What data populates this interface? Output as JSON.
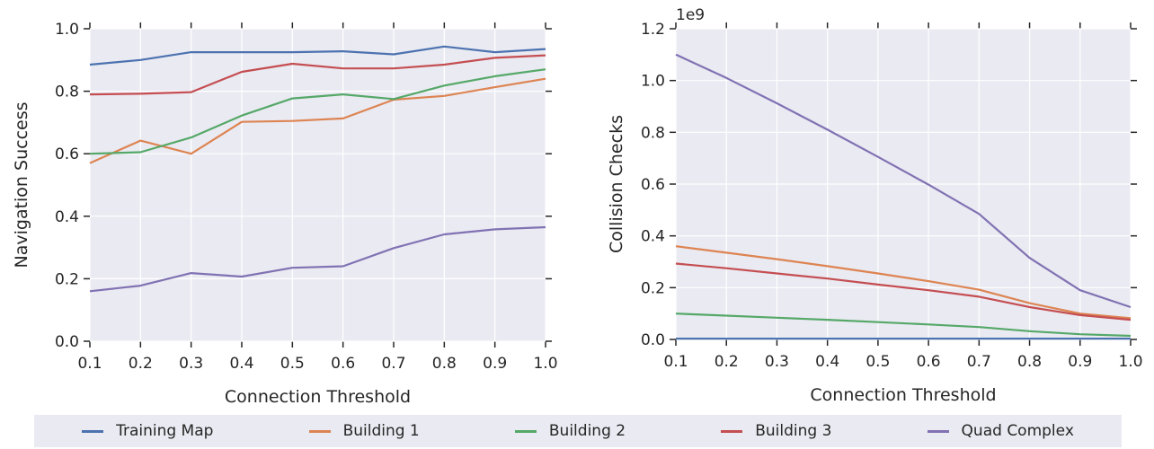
{
  "chart_data": [
    {
      "type": "line",
      "xlabel": "Connection Threshold",
      "ylabel": "Navigation Success",
      "x": [
        0.1,
        0.2,
        0.3,
        0.4,
        0.5,
        0.6,
        0.7,
        0.8,
        0.9,
        1.0
      ],
      "xlim": [
        0.1,
        1.0
      ],
      "ylim": [
        0.0,
        1.0
      ],
      "xticks": [
        "0.1",
        "0.2",
        "0.3",
        "0.4",
        "0.5",
        "0.6",
        "0.7",
        "0.8",
        "0.9",
        "1.0"
      ],
      "yticks": [
        "0.0",
        "0.2",
        "0.4",
        "0.6",
        "0.8",
        "1.0"
      ],
      "grid": true,
      "series": [
        {
          "name": "Training Map",
          "color": "#4c72b0",
          "values": [
            0.885,
            0.9,
            0.925,
            0.925,
            0.925,
            0.928,
            0.918,
            0.943,
            0.925,
            0.935
          ]
        },
        {
          "name": "Building 1",
          "color": "#dd8452",
          "values": [
            0.57,
            0.642,
            0.6,
            0.702,
            0.705,
            0.713,
            0.773,
            0.785,
            0.813,
            0.84
          ]
        },
        {
          "name": "Building 2",
          "color": "#55a868",
          "values": [
            0.6,
            0.605,
            0.652,
            0.722,
            0.777,
            0.79,
            0.775,
            0.818,
            0.848,
            0.87
          ]
        },
        {
          "name": "Building 3",
          "color": "#c44e52",
          "values": [
            0.79,
            0.792,
            0.797,
            0.862,
            0.888,
            0.873,
            0.873,
            0.885,
            0.907,
            0.915
          ]
        },
        {
          "name": "Quad Complex",
          "color": "#8172b3",
          "values": [
            0.16,
            0.178,
            0.218,
            0.207,
            0.235,
            0.24,
            0.298,
            0.342,
            0.358,
            0.365
          ]
        }
      ]
    },
    {
      "type": "line",
      "xlabel": "Connection Threshold",
      "ylabel": "Collision Checks",
      "y_offset_label": "1e9",
      "x": [
        0.1,
        0.2,
        0.3,
        0.4,
        0.5,
        0.6,
        0.7,
        0.8,
        0.9,
        1.0
      ],
      "xlim": [
        0.1,
        1.0
      ],
      "ylim": [
        0.0,
        1.2
      ],
      "xticks": [
        "0.1",
        "0.2",
        "0.3",
        "0.4",
        "0.5",
        "0.6",
        "0.7",
        "0.8",
        "0.9",
        "1.0"
      ],
      "yticks": [
        "0.0",
        "0.2",
        "0.4",
        "0.6",
        "0.8",
        "1.0",
        "1.2"
      ],
      "grid": true,
      "series": [
        {
          "name": "Training Map",
          "color": "#4c72b0",
          "values": [
            0.003,
            0.003,
            0.003,
            0.003,
            0.003,
            0.003,
            0.003,
            0.003,
            0.003,
            0.003
          ]
        },
        {
          "name": "Building 1",
          "color": "#dd8452",
          "values": [
            0.36,
            0.335,
            0.31,
            0.283,
            0.255,
            0.225,
            0.192,
            0.14,
            0.1,
            0.082
          ]
        },
        {
          "name": "Building 2",
          "color": "#55a868",
          "values": [
            0.1,
            0.092,
            0.084,
            0.076,
            0.067,
            0.058,
            0.048,
            0.032,
            0.02,
            0.014
          ]
        },
        {
          "name": "Building 3",
          "color": "#c44e52",
          "values": [
            0.293,
            0.275,
            0.255,
            0.235,
            0.212,
            0.19,
            0.165,
            0.125,
            0.094,
            0.076
          ]
        },
        {
          "name": "Quad Complex",
          "color": "#8172b3",
          "values": [
            1.1,
            1.01,
            0.912,
            0.81,
            0.705,
            0.598,
            0.485,
            0.315,
            0.19,
            0.125
          ]
        }
      ]
    }
  ],
  "legend": [
    {
      "label": "Training Map",
      "color": "#4c72b0"
    },
    {
      "label": "Building 1",
      "color": "#dd8452"
    },
    {
      "label": "Building 2",
      "color": "#55a868"
    },
    {
      "label": "Building 3",
      "color": "#c44e52"
    },
    {
      "label": "Quad Complex",
      "color": "#8172b3"
    }
  ]
}
